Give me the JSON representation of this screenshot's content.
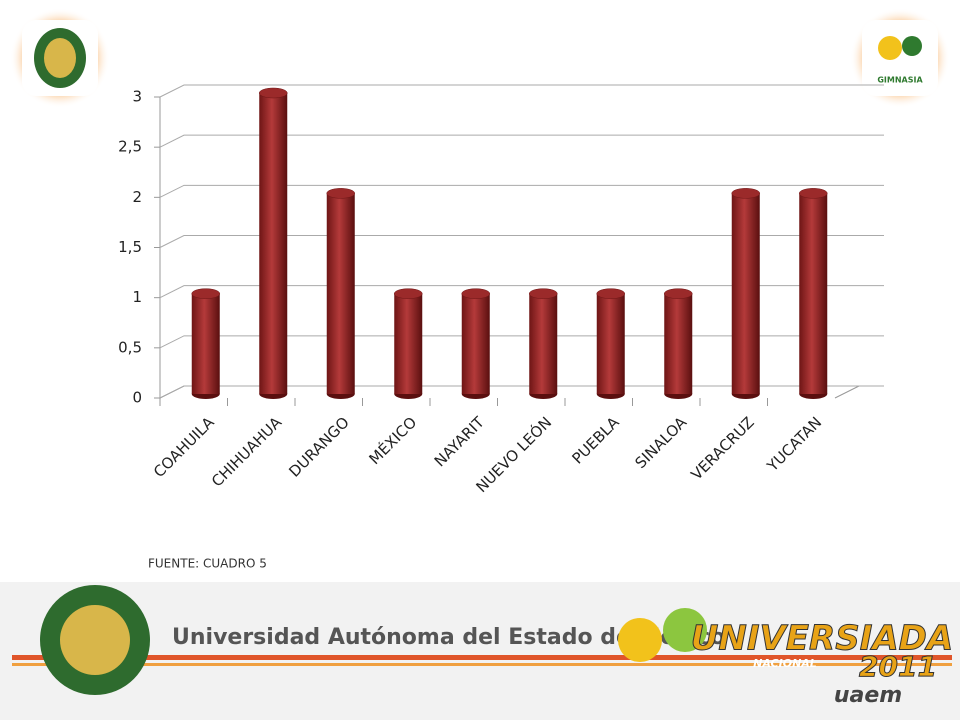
{
  "chart_data": {
    "type": "bar3d",
    "categories": [
      "COAHUILA",
      "CHIHUAHUA",
      "DURANGO",
      "MÉXICO",
      "NAYARIT",
      "NUEVO LEÓN",
      "PUEBLA",
      "SINALOA",
      "VERACRUZ",
      "YUCATAN"
    ],
    "values": [
      1,
      3,
      2,
      1,
      1,
      1,
      1,
      1,
      2,
      2
    ],
    "color": "#9b2a2a",
    "ylim": [
      0,
      3
    ],
    "yticks": [
      0,
      {
        "value": 0.5,
        "label": "0,5"
      },
      1,
      {
        "value": 1.5,
        "label": "1,5"
      },
      2,
      {
        "value": 2.5,
        "label": "2,5"
      },
      3
    ],
    "grid": true,
    "source": "FUENTE: CUADRO 5"
  },
  "logos": {
    "right": "GIMNASIA"
  },
  "banner": {
    "university": "Universidad Autónoma del Estado de México",
    "event": "UNIVERSIADA",
    "event_sub": "NACIONAL",
    "year": "2011",
    "host": "uaem"
  }
}
